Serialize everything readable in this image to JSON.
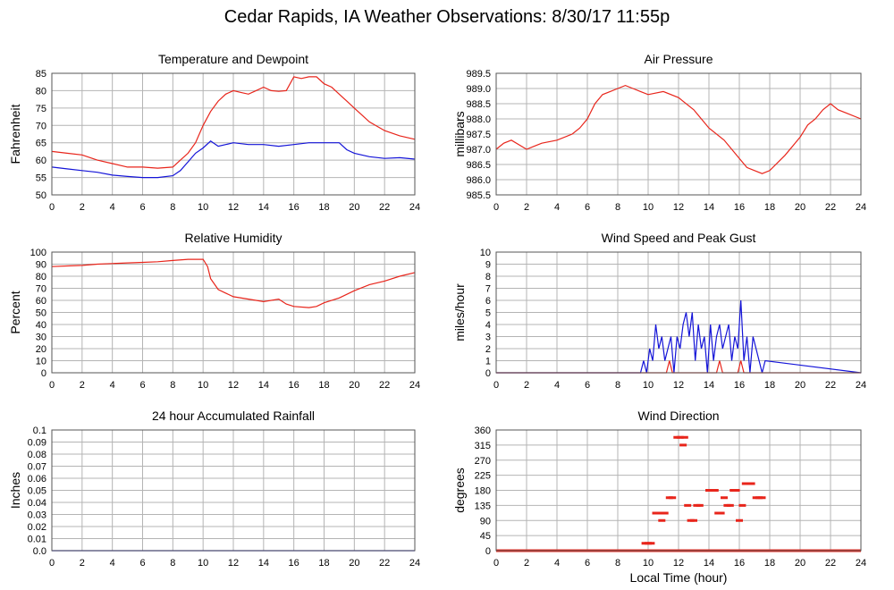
{
  "title": "Cedar Rapids, IA Weather Observations: 8/30/17 11:55p",
  "colors": {
    "red": "#e8251b",
    "blue": "#1414d8",
    "grid": "#b4b4b4",
    "frame": "#555555"
  },
  "chart_data": [
    {
      "type": "line",
      "title": "Temperature and Dewpoint",
      "xlabel": "",
      "ylabel": "Fahrenheit",
      "xlim": [
        0,
        24
      ],
      "ylim": [
        50,
        85
      ],
      "yticks": [
        50,
        55,
        60,
        65,
        70,
        75,
        80,
        85
      ],
      "grid": true,
      "series": [
        {
          "color": "#e8251b",
          "x": [
            0,
            1,
            2,
            3,
            4,
            5,
            6,
            7,
            8,
            8.5,
            9,
            9.5,
            10,
            10.5,
            11,
            11.5,
            12,
            12.5,
            13,
            13.5,
            14,
            14.5,
            15,
            15.5,
            16,
            16.5,
            17,
            17.5,
            18,
            18.5,
            19,
            19.5,
            20,
            21,
            22,
            23,
            24
          ],
          "y": [
            62.5,
            62,
            61.5,
            60,
            59,
            58,
            58,
            57.7,
            58,
            60,
            62,
            65,
            70,
            74,
            77,
            79,
            80,
            79.5,
            79,
            80,
            81,
            80,
            79.8,
            80,
            84,
            83.5,
            84,
            84,
            82,
            81,
            79,
            77,
            75,
            71,
            68.5,
            67,
            66
          ]
        },
        {
          "color": "#1414d8",
          "x": [
            0,
            1,
            2,
            3,
            4,
            5,
            6,
            7,
            8,
            8.5,
            9,
            9.5,
            10,
            10.5,
            11,
            11.5,
            12,
            13,
            14,
            15,
            16,
            17,
            18,
            19,
            19.5,
            20,
            21,
            22,
            23,
            24
          ],
          "y": [
            58,
            57.5,
            57,
            56.5,
            55.7,
            55.3,
            55,
            55,
            55.5,
            57,
            59.5,
            62,
            63.5,
            65.5,
            64,
            64.5,
            65,
            64.5,
            64.5,
            64,
            64.5,
            65,
            65,
            65,
            63,
            62,
            61,
            60.5,
            60.7,
            60.3
          ]
        }
      ]
    },
    {
      "type": "line",
      "title": "Air Pressure",
      "xlabel": "",
      "ylabel": "millibars",
      "xlim": [
        0,
        24
      ],
      "ylim": [
        985.5,
        989.5
      ],
      "yticks": [
        985.5,
        986.0,
        986.5,
        987.0,
        987.5,
        988.0,
        988.5,
        989.0,
        989.5
      ],
      "ytick_labels": [
        "985.5",
        "986.0",
        "986.5",
        "987.0",
        "987.5",
        "988.0",
        "988.5",
        "989.0",
        "989.5"
      ],
      "grid": true,
      "series": [
        {
          "color": "#e8251b",
          "x": [
            0,
            0.5,
            1,
            2,
            2.5,
            3,
            4,
            5,
            5.5,
            6,
            6.5,
            7,
            7.5,
            8,
            8.5,
            9,
            9.5,
            10,
            11,
            12,
            13,
            14,
            15,
            16,
            16.5,
            17,
            17.5,
            18,
            19,
            20,
            20.5,
            21,
            21.5,
            22,
            22.5,
            23,
            24
          ],
          "y": [
            987.0,
            987.2,
            987.3,
            987.0,
            987.1,
            987.2,
            987.3,
            987.5,
            987.7,
            988.0,
            988.5,
            988.8,
            988.9,
            989.0,
            989.1,
            989.0,
            988.9,
            988.8,
            988.9,
            988.7,
            988.3,
            987.7,
            987.3,
            986.7,
            986.4,
            986.3,
            986.2,
            986.3,
            986.8,
            987.4,
            987.8,
            988.0,
            988.3,
            988.5,
            988.3,
            988.2,
            988.0
          ]
        }
      ]
    },
    {
      "type": "line",
      "title": "Relative Humidity",
      "xlabel": "",
      "ylabel": "Percent",
      "xlim": [
        0,
        24
      ],
      "ylim": [
        0,
        100
      ],
      "yticks": [
        0,
        10,
        20,
        30,
        40,
        50,
        60,
        70,
        80,
        90,
        100
      ],
      "grid": true,
      "series": [
        {
          "color": "#e8251b",
          "x": [
            0,
            1,
            2,
            3,
            4,
            5,
            6,
            7,
            8,
            9,
            10,
            10.3,
            10.5,
            11,
            11.5,
            12,
            13,
            14,
            15,
            15.5,
            16,
            17,
            17.5,
            18,
            19,
            20,
            21,
            22,
            23,
            24
          ],
          "y": [
            88,
            88.5,
            89,
            90,
            90.5,
            91,
            91.5,
            92,
            93,
            94,
            94,
            88,
            78,
            69,
            66,
            63,
            61,
            59,
            61,
            57,
            55,
            54,
            55,
            58,
            62,
            68,
            73,
            76,
            80,
            83
          ]
        }
      ]
    },
    {
      "type": "line",
      "title": "Wind Speed and Peak Gust",
      "xlabel": "",
      "ylabel": "miles/hour",
      "xlim": [
        0,
        24
      ],
      "ylim": [
        0,
        10
      ],
      "yticks": [
        0,
        1,
        2,
        3,
        4,
        5,
        6,
        7,
        8,
        9,
        10
      ],
      "grid": true,
      "series": [
        {
          "color": "#1414d8",
          "x": [
            0,
            9.5,
            9.7,
            9.9,
            10.1,
            10.3,
            10.5,
            10.7,
            10.9,
            11.1,
            11.3,
            11.5,
            11.7,
            11.9,
            12.1,
            12.3,
            12.5,
            12.7,
            12.9,
            13.1,
            13.3,
            13.5,
            13.7,
            13.9,
            14.1,
            14.3,
            14.5,
            14.7,
            14.9,
            15.1,
            15.3,
            15.5,
            15.7,
            15.9,
            16.1,
            16.3,
            16.5,
            16.7,
            16.9,
            17.1,
            17.3,
            17.5,
            17.7,
            24
          ],
          "y": [
            0,
            0,
            1,
            0,
            2,
            1,
            4,
            2,
            3,
            1,
            2,
            3,
            0,
            3,
            2,
            4,
            5,
            3,
            5,
            1,
            4,
            2,
            3,
            0,
            4,
            1,
            3,
            4,
            2,
            3,
            4,
            1,
            3,
            2,
            6,
            1,
            3,
            0,
            3,
            2,
            1,
            0,
            1,
            0
          ]
        },
        {
          "color": "#e8251b",
          "x": [
            0,
            11.2,
            11.4,
            11.6,
            14.5,
            14.7,
            14.9,
            15.9,
            16.1,
            16.3,
            24
          ],
          "y": [
            0,
            0,
            1,
            0,
            0,
            1,
            0,
            0,
            1,
            0,
            0
          ]
        }
      ]
    },
    {
      "type": "line",
      "title": "24 hour Accumulated Rainfall",
      "xlabel": "",
      "ylabel": "Inches",
      "xlim": [
        0,
        24
      ],
      "ylim": [
        0,
        0.1
      ],
      "yticks": [
        0,
        0.01,
        0.02,
        0.03,
        0.04,
        0.05,
        0.06,
        0.07,
        0.08,
        0.09,
        0.1
      ],
      "ytick_labels": [
        "0.0",
        "0.01",
        "0.02",
        "0.03",
        "0.04",
        "0.05",
        "0.06",
        "0.07",
        "0.08",
        "0.09",
        "0.1"
      ],
      "grid": true,
      "series": [
        {
          "color": "#1414d8",
          "x": [
            0,
            24
          ],
          "y": [
            0,
            0
          ]
        }
      ]
    },
    {
      "type": "scatter",
      "title": "Wind Direction",
      "xlabel": "Local Time (hour)",
      "ylabel": "degrees",
      "xlim": [
        0,
        24
      ],
      "ylim": [
        0,
        360
      ],
      "yticks": [
        0,
        45,
        90,
        135,
        180,
        225,
        270,
        315,
        360
      ],
      "grid": true,
      "baseline": {
        "color": "#e8251b",
        "x": [
          0,
          24
        ],
        "y": [
          0,
          0
        ]
      },
      "series": [
        {
          "color": "#e8251b",
          "x": [
            9.8,
            10.0,
            10.2,
            10.5,
            10.7,
            10.9,
            11.1,
            11.4,
            11.6,
            11.9,
            12.1,
            12.3,
            12.4,
            12.6,
            12.8,
            13.0,
            13.2,
            13.4,
            13.7,
            14.0,
            14.2,
            14.4,
            14.6,
            14.8,
            15.0,
            15.2,
            15.4,
            15.6,
            15.8,
            16.0,
            16.2,
            16.4,
            16.6,
            16.8,
            17.1,
            17.3,
            17.5
          ],
          "y": [
            22,
            22,
            22,
            112,
            112,
            90,
            112,
            158,
            158,
            338,
            338,
            315,
            338,
            135,
            90,
            90,
            135,
            135,
            0,
            180,
            180,
            180,
            112,
            112,
            158,
            135,
            135,
            180,
            180,
            90,
            135,
            200,
            200,
            200,
            158,
            158,
            158
          ]
        }
      ]
    }
  ]
}
